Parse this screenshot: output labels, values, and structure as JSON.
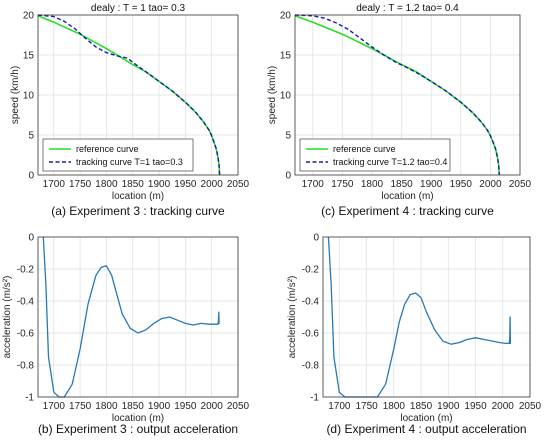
{
  "colors": {
    "reference": "#22e022",
    "tracking_dashed": "#1a1aa8",
    "acceleration": "#2878b8",
    "grid": "#dddddd",
    "axis": "#333333"
  },
  "chart_data": [
    {
      "id": "a",
      "type": "line",
      "title": "dealy : T = 1 tao= 0.3",
      "caption": "(a) Experiment 3 : tracking curve",
      "xlabel": "location (m)",
      "ylabel": "speed (km/h)",
      "xlim": [
        1670,
        2050
      ],
      "ylim": [
        0,
        20
      ],
      "xticks": [
        1700,
        1750,
        1800,
        1850,
        1900,
        1950,
        2000,
        2050
      ],
      "yticks": [
        0,
        5,
        10,
        15,
        20
      ],
      "grid": true,
      "legend_position": "bottom-left",
      "series": [
        {
          "name": "reference curve",
          "style": "solid",
          "x": [
            1670,
            1700,
            1750,
            1800,
            1850,
            1875,
            1900,
            1925,
            1950,
            1970,
            1985,
            1995,
            2000,
            2005,
            2009,
            2012,
            2014,
            2015
          ],
          "y": [
            19.9,
            19.1,
            17.6,
            15.8,
            13.8,
            12.9,
            11.7,
            10.5,
            9.1,
            7.8,
            6.6,
            5.6,
            4.9,
            4.0,
            3.2,
            2.2,
            1.2,
            0
          ]
        },
        {
          "name": "tracking curve T=1 tao=0.3",
          "style": "dashed",
          "x": [
            1670,
            1700,
            1720,
            1740,
            1760,
            1780,
            1800,
            1820,
            1840,
            1860,
            1875,
            1900,
            1925,
            1950,
            1970,
            1985,
            1995,
            2000,
            2005,
            2009,
            2012,
            2014,
            2015
          ],
          "y": [
            20.0,
            19.8,
            19.2,
            18.3,
            17.1,
            16.0,
            15.3,
            14.9,
            14.6,
            13.6,
            12.9,
            11.7,
            10.5,
            9.1,
            7.8,
            6.6,
            5.6,
            4.9,
            4.0,
            3.2,
            2.2,
            1.2,
            0
          ]
        }
      ]
    },
    {
      "id": "c",
      "type": "line",
      "title": "dealy : T = 1.2  tao= 0.4",
      "caption": "(c) Experiment 4 : tracking curve",
      "xlabel": "location (m)",
      "ylabel": "speed (km/h)",
      "xlim": [
        1670,
        2050
      ],
      "ylim": [
        0,
        20
      ],
      "xticks": [
        1700,
        1750,
        1800,
        1850,
        1900,
        1950,
        2000,
        2050
      ],
      "yticks": [
        0,
        5,
        10,
        15,
        20
      ],
      "grid": true,
      "legend_position": "bottom-left",
      "series": [
        {
          "name": "reference curve",
          "style": "solid",
          "x": [
            1670,
            1700,
            1750,
            1800,
            1850,
            1875,
            1900,
            1925,
            1950,
            1970,
            1985,
            1995,
            2000,
            2005,
            2009,
            2012,
            2014,
            2015
          ],
          "y": [
            19.9,
            19.1,
            17.6,
            15.8,
            13.8,
            12.9,
            11.7,
            10.5,
            9.1,
            7.8,
            6.6,
            5.6,
            4.9,
            4.0,
            3.2,
            2.2,
            1.2,
            0
          ]
        },
        {
          "name": "tracking curve T=1.2 tao=0.4",
          "style": "dashed",
          "x": [
            1670,
            1700,
            1720,
            1740,
            1760,
            1780,
            1800,
            1820,
            1840,
            1860,
            1880,
            1900,
            1925,
            1950,
            1970,
            1985,
            1995,
            2000,
            2005,
            2009,
            2012,
            2014,
            2015
          ],
          "y": [
            20.0,
            19.9,
            19.6,
            19.0,
            18.2,
            17.1,
            16.0,
            15.0,
            14.1,
            13.4,
            12.6,
            11.7,
            10.5,
            9.1,
            7.8,
            6.6,
            5.6,
            4.9,
            4.0,
            3.2,
            2.2,
            1.2,
            0
          ]
        }
      ]
    },
    {
      "id": "b",
      "type": "line",
      "title": "",
      "caption": "(b) Experiment 3 : output acceleration",
      "xlabel": "location (m)",
      "ylabel": "acceleration (m/s²)",
      "xlim": [
        1670,
        2050
      ],
      "ylim": [
        -1,
        0
      ],
      "xticks": [
        1700,
        1750,
        1800,
        1850,
        1900,
        1950,
        2000,
        2050
      ],
      "yticks": [
        -1,
        -0.8,
        -0.6,
        -0.4,
        -0.2,
        0
      ],
      "grid": true,
      "series": [
        {
          "name": "",
          "style": "solid",
          "x": [
            1680,
            1685,
            1690,
            1700,
            1710,
            1720,
            1735,
            1750,
            1765,
            1780,
            1790,
            1800,
            1810,
            1820,
            1830,
            1845,
            1860,
            1875,
            1890,
            1905,
            1920,
            1935,
            1950,
            1965,
            1980,
            1995,
            2005,
            2012,
            2013,
            2013.5,
            2014,
            2015
          ],
          "y": [
            0,
            -0.3,
            -0.75,
            -0.97,
            -1.0,
            -1.0,
            -0.92,
            -0.7,
            -0.42,
            -0.24,
            -0.19,
            -0.18,
            -0.24,
            -0.36,
            -0.48,
            -0.57,
            -0.6,
            -0.58,
            -0.54,
            -0.51,
            -0.5,
            -0.52,
            -0.54,
            -0.55,
            -0.54,
            -0.545,
            -0.545,
            -0.545,
            -0.52,
            -0.47,
            -0.54,
            -0.54
          ]
        }
      ]
    },
    {
      "id": "d",
      "type": "line",
      "title": "",
      "caption": "(d) Experiment 4 : output acceleration",
      "xlabel": "location (m)",
      "ylabel": "acceleration (m/s²)",
      "xlim": [
        1670,
        2050
      ],
      "ylim": [
        -1,
        0
      ],
      "xticks": [
        1700,
        1750,
        1800,
        1850,
        1900,
        1950,
        2000,
        2050
      ],
      "yticks": [
        -1,
        -0.8,
        -0.6,
        -0.4,
        -0.2,
        0
      ],
      "grid": true,
      "series": [
        {
          "name": "",
          "style": "solid",
          "x": [
            1680,
            1685,
            1690,
            1700,
            1710,
            1725,
            1740,
            1755,
            1770,
            1785,
            1800,
            1810,
            1820,
            1830,
            1840,
            1850,
            1860,
            1875,
            1890,
            1905,
            1920,
            1935,
            1950,
            1965,
            1980,
            1995,
            2005,
            2012,
            2013,
            2013.5,
            2014,
            2015
          ],
          "y": [
            0,
            -0.3,
            -0.75,
            -0.97,
            -1.0,
            -1.0,
            -1.0,
            -1.0,
            -1.0,
            -0.92,
            -0.7,
            -0.53,
            -0.42,
            -0.36,
            -0.35,
            -0.38,
            -0.47,
            -0.58,
            -0.65,
            -0.67,
            -0.66,
            -0.64,
            -0.63,
            -0.64,
            -0.65,
            -0.66,
            -0.665,
            -0.665,
            -0.62,
            -0.5,
            -0.665,
            -0.665
          ]
        }
      ]
    }
  ]
}
